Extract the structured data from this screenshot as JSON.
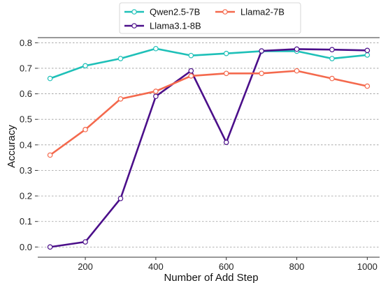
{
  "chart_data": {
    "type": "line",
    "xlabel": "Number of Add Step",
    "ylabel": "Accuracy",
    "xlim": [
      65,
      1035
    ],
    "ylim": [
      -0.04,
      0.82
    ],
    "xticks": [
      "200",
      "400",
      "600",
      "800",
      "1000"
    ],
    "yticks": [
      "0.0",
      "0.1",
      "0.2",
      "0.3",
      "0.4",
      "0.5",
      "0.6",
      "0.7",
      "0.8"
    ],
    "grid": "horizontal dashed",
    "legend_placement": "top-center",
    "x": [
      100,
      200,
      300,
      400,
      500,
      600,
      700,
      800,
      900,
      1000
    ],
    "series": [
      {
        "name": "Qwen2.5-7B",
        "color": "#1ec0b8",
        "values": [
          0.66,
          0.71,
          0.738,
          0.777,
          0.75,
          0.758,
          0.767,
          0.767,
          0.738,
          0.752
        ]
      },
      {
        "name": "Llama3.1-8B",
        "color": "#4b0f8a",
        "values": [
          0.0,
          0.02,
          0.19,
          0.59,
          0.69,
          0.41,
          0.768,
          0.775,
          0.773,
          0.77
        ]
      },
      {
        "name": "Llama2-7B",
        "color": "#f4694d",
        "values": [
          0.36,
          0.46,
          0.58,
          0.61,
          0.67,
          0.68,
          0.68,
          0.69,
          0.66,
          0.63
        ]
      }
    ]
  }
}
